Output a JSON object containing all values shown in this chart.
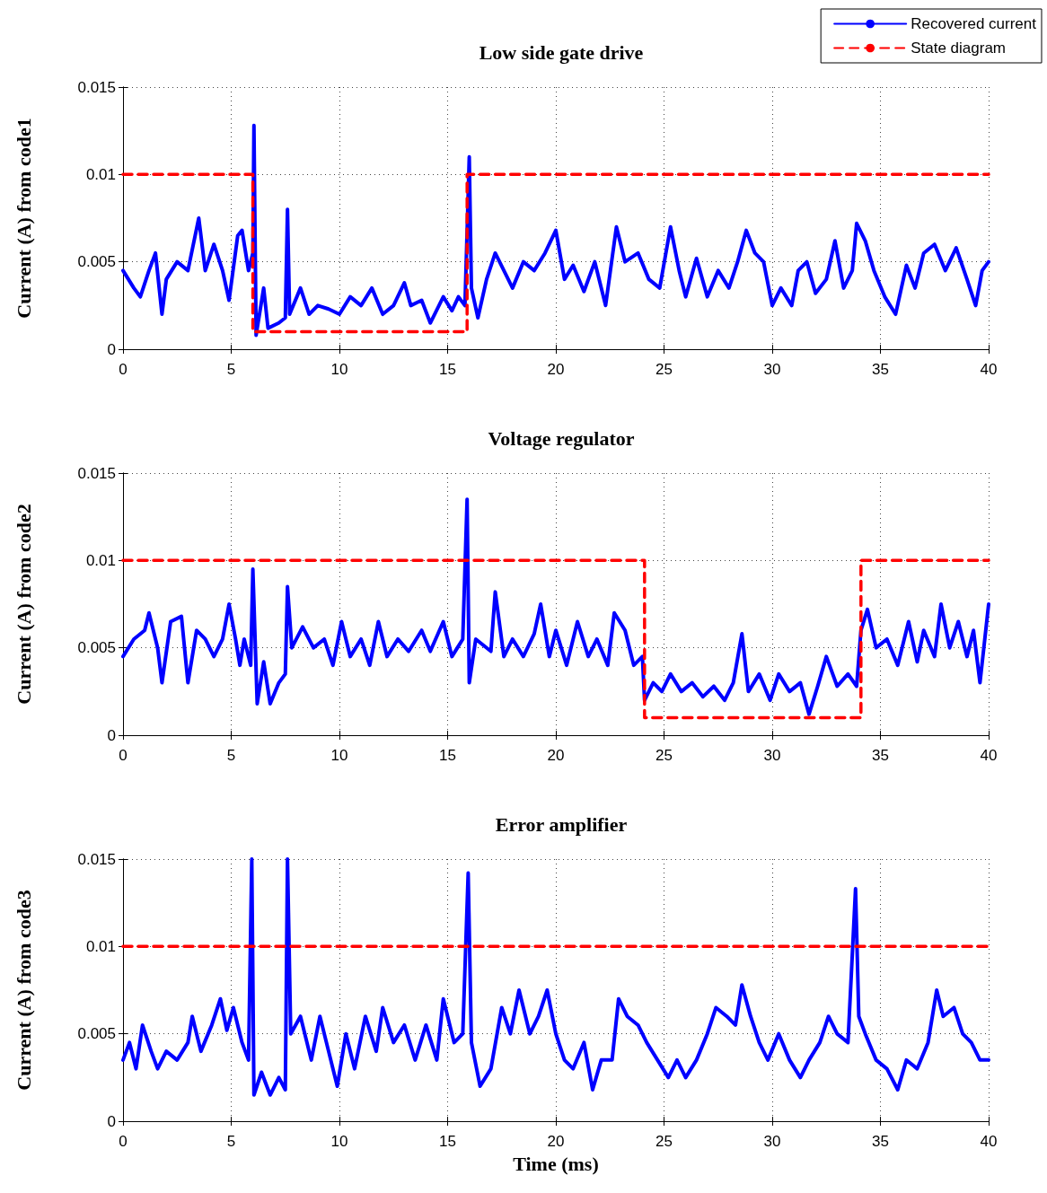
{
  "chart_data": [
    {
      "type": "line",
      "title": "Low side gate drive",
      "ylabel": "Current (A) from code1",
      "xlim": [
        0,
        40
      ],
      "xticks": [
        0,
        5,
        10,
        15,
        20,
        25,
        30,
        35,
        40
      ],
      "ylim": [
        0,
        0.015
      ],
      "yticks": [
        0,
        0.005,
        0.01,
        0.015
      ],
      "grid": true,
      "legend": "top right",
      "marker": "none",
      "series": [
        {
          "name": "Recovered current",
          "color": "#0000ff",
          "line_style": "solid",
          "x": [
            0,
            0.5,
            0.8,
            1.2,
            1.5,
            1.8,
            2,
            2.5,
            3,
            3.5,
            3.8,
            4.2,
            4.6,
            4.9,
            5.3,
            5.5,
            5.8,
            6.0,
            6.05,
            6.15,
            6.5,
            6.7,
            7.2,
            7.5,
            7.6,
            7.7,
            8.2,
            8.6,
            9,
            9.5,
            10,
            10.5,
            11,
            11.5,
            12,
            12.5,
            13,
            13.3,
            13.8,
            14.2,
            14.8,
            15.2,
            15.5,
            15.8,
            16.0,
            16.1,
            16.4,
            16.8,
            17.2,
            17.6,
            18,
            18.5,
            19,
            19.5,
            20,
            20.4,
            20.8,
            21.3,
            21.8,
            22.3,
            22.8,
            23.2,
            23.8,
            24.3,
            24.8,
            25.3,
            25.7,
            26,
            26.5,
            27,
            27.5,
            28,
            28.4,
            28.8,
            29.2,
            29.6,
            30,
            30.4,
            30.9,
            31.2,
            31.6,
            32,
            32.5,
            32.9,
            33.3,
            33.7,
            33.9,
            34.3,
            34.7,
            35.2,
            35.7,
            36.2,
            36.6,
            37,
            37.5,
            38,
            38.5,
            39,
            39.4,
            39.7,
            40
          ],
          "values": [
            0.0045,
            0.0035,
            0.003,
            0.0045,
            0.0055,
            0.002,
            0.004,
            0.005,
            0.0045,
            0.0075,
            0.0045,
            0.006,
            0.0045,
            0.0028,
            0.0065,
            0.0068,
            0.0045,
            0.0055,
            0.0128,
            0.0008,
            0.0035,
            0.0012,
            0.0015,
            0.0018,
            0.008,
            0.002,
            0.0035,
            0.002,
            0.0025,
            0.0023,
            0.002,
            0.003,
            0.0025,
            0.0035,
            0.002,
            0.0025,
            0.0038,
            0.0025,
            0.0028,
            0.0015,
            0.003,
            0.0022,
            0.003,
            0.0025,
            0.011,
            0.0035,
            0.0018,
            0.004,
            0.0055,
            0.0045,
            0.0035,
            0.005,
            0.0045,
            0.0055,
            0.0068,
            0.004,
            0.0048,
            0.0033,
            0.005,
            0.0025,
            0.007,
            0.005,
            0.0055,
            0.004,
            0.0035,
            0.007,
            0.0045,
            0.003,
            0.0052,
            0.003,
            0.0045,
            0.0035,
            0.005,
            0.0068,
            0.0055,
            0.005,
            0.0025,
            0.0035,
            0.0025,
            0.0045,
            0.005,
            0.0032,
            0.004,
            0.0062,
            0.0035,
            0.0045,
            0.0072,
            0.0062,
            0.0045,
            0.003,
            0.002,
            0.0048,
            0.0035,
            0.0055,
            0.006,
            0.0045,
            0.0058,
            0.004,
            0.0025,
            0.0045,
            0.005
          ]
        },
        {
          "name": "State diagram",
          "color": "#ff0000",
          "line_style": "dashed",
          "x": [
            0,
            6,
            6,
            15.9,
            15.9,
            40
          ],
          "values": [
            0.01,
            0.01,
            0.001,
            0.001,
            0.01,
            0.01
          ]
        }
      ]
    },
    {
      "type": "line",
      "title": "Voltage regulator",
      "ylabel": "Current (A) from code2",
      "xlim": [
        0,
        40
      ],
      "xticks": [
        0,
        5,
        10,
        15,
        20,
        25,
        30,
        35,
        40
      ],
      "ylim": [
        0,
        0.015
      ],
      "yticks": [
        0,
        0.005,
        0.01,
        0.015
      ],
      "grid": true,
      "marker": "none",
      "series": [
        {
          "color": "#0000ff",
          "line_style": "solid",
          "x": [
            0,
            0.5,
            1,
            1.2,
            1.6,
            1.8,
            2.2,
            2.7,
            3,
            3.4,
            3.8,
            4.2,
            4.6,
            4.9,
            5.2,
            5.4,
            5.6,
            5.9,
            6.0,
            6.2,
            6.5,
            6.8,
            7.2,
            7.5,
            7.6,
            7.8,
            8.3,
            8.8,
            9.3,
            9.7,
            10.1,
            10.5,
            11,
            11.4,
            11.8,
            12.2,
            12.7,
            13.2,
            13.8,
            14.2,
            14.8,
            15.2,
            15.7,
            15.9,
            16.0,
            16.3,
            17,
            17.2,
            17.6,
            18,
            18.5,
            19,
            19.3,
            19.7,
            20,
            20.5,
            21,
            21.5,
            21.9,
            22.4,
            22.7,
            23.2,
            23.6,
            24,
            24.1,
            24.5,
            24.9,
            25.3,
            25.8,
            26.3,
            26.8,
            27.3,
            27.8,
            28.2,
            28.6,
            28.9,
            29.4,
            29.9,
            30.3,
            30.8,
            31.3,
            31.7,
            32.1,
            32.5,
            33,
            33.5,
            33.9,
            34.1,
            34.4,
            34.8,
            35.3,
            35.8,
            36.3,
            36.7,
            37,
            37.5,
            37.8,
            38.2,
            38.6,
            39,
            39.3,
            39.6,
            40
          ],
          "values": [
            0.0045,
            0.0055,
            0.006,
            0.007,
            0.005,
            0.003,
            0.0065,
            0.0068,
            0.003,
            0.006,
            0.0055,
            0.0045,
            0.0055,
            0.0075,
            0.0055,
            0.004,
            0.0055,
            0.004,
            0.0095,
            0.0018,
            0.0042,
            0.0018,
            0.003,
            0.0035,
            0.0085,
            0.005,
            0.0062,
            0.005,
            0.0055,
            0.004,
            0.0065,
            0.0045,
            0.0055,
            0.004,
            0.0065,
            0.0045,
            0.0055,
            0.0048,
            0.006,
            0.0048,
            0.0065,
            0.0045,
            0.0055,
            0.0135,
            0.003,
            0.0055,
            0.0048,
            0.0082,
            0.0045,
            0.0055,
            0.0045,
            0.0058,
            0.0075,
            0.0045,
            0.006,
            0.004,
            0.0065,
            0.0045,
            0.0055,
            0.004,
            0.007,
            0.006,
            0.004,
            0.0045,
            0.002,
            0.003,
            0.0025,
            0.0035,
            0.0025,
            0.003,
            0.0022,
            0.0028,
            0.002,
            0.003,
            0.0058,
            0.0025,
            0.0035,
            0.002,
            0.0035,
            0.0025,
            0.003,
            0.0012,
            0.0028,
            0.0045,
            0.0028,
            0.0035,
            0.0028,
            0.006,
            0.0072,
            0.005,
            0.0055,
            0.004,
            0.0065,
            0.0042,
            0.006,
            0.0045,
            0.0075,
            0.005,
            0.0065,
            0.0045,
            0.006,
            0.003,
            0.0075
          ]
        },
        {
          "color": "#ff0000",
          "line_style": "dashed",
          "x": [
            0,
            24.1,
            24.1,
            34.1,
            34.1,
            40
          ],
          "values": [
            0.01,
            0.01,
            0.001,
            0.001,
            0.01,
            0.01
          ]
        }
      ]
    },
    {
      "type": "line",
      "title": "Error amplifier",
      "ylabel": "Current (A) from code3",
      "xlabel": "Time (ms)",
      "xlim": [
        0,
        40
      ],
      "xticks": [
        0,
        5,
        10,
        15,
        20,
        25,
        30,
        35,
        40
      ],
      "ylim": [
        0,
        0.015
      ],
      "yticks": [
        0,
        0.005,
        0.01,
        0.015
      ],
      "grid": true,
      "marker": "none",
      "series": [
        {
          "color": "#0000ff",
          "line_style": "solid",
          "x": [
            0,
            0.3,
            0.6,
            0.9,
            1.3,
            1.6,
            2,
            2.5,
            3,
            3.2,
            3.6,
            4.1,
            4.5,
            4.8,
            5.1,
            5.5,
            5.8,
            5.95,
            6.05,
            6.4,
            6.8,
            7.2,
            7.5,
            7.6,
            7.75,
            8.2,
            8.7,
            9.1,
            9.5,
            9.9,
            10.3,
            10.7,
            11.2,
            11.7,
            12,
            12.5,
            13,
            13.5,
            14,
            14.5,
            14.8,
            15.3,
            15.7,
            15.95,
            16.1,
            16.5,
            17,
            17.5,
            17.9,
            18.3,
            18.8,
            19.2,
            19.6,
            20,
            20.4,
            20.8,
            21.3,
            21.7,
            22.1,
            22.6,
            22.9,
            23.3,
            23.8,
            24.2,
            24.7,
            25.2,
            25.6,
            26,
            26.5,
            27,
            27.4,
            27.9,
            28.3,
            28.6,
            29,
            29.4,
            29.8,
            30.3,
            30.8,
            31.3,
            31.7,
            32.2,
            32.6,
            33,
            33.5,
            33.85,
            34,
            34.3,
            34.8,
            35.3,
            35.8,
            36.2,
            36.7,
            37.2,
            37.6,
            37.9,
            38.4,
            38.8,
            39.2,
            39.6,
            40
          ],
          "values": [
            0.0035,
            0.0045,
            0.003,
            0.0055,
            0.004,
            0.003,
            0.004,
            0.0035,
            0.0045,
            0.006,
            0.004,
            0.0055,
            0.007,
            0.0052,
            0.0065,
            0.0045,
            0.0035,
            0.015,
            0.0015,
            0.0028,
            0.0015,
            0.0025,
            0.0018,
            0.015,
            0.005,
            0.006,
            0.0035,
            0.006,
            0.004,
            0.002,
            0.005,
            0.003,
            0.006,
            0.004,
            0.0065,
            0.0045,
            0.0055,
            0.0035,
            0.0055,
            0.0035,
            0.007,
            0.0045,
            0.005,
            0.0142,
            0.0045,
            0.002,
            0.003,
            0.0065,
            0.005,
            0.0075,
            0.005,
            0.006,
            0.0075,
            0.005,
            0.0035,
            0.003,
            0.0045,
            0.0018,
            0.0035,
            0.0035,
            0.007,
            0.006,
            0.0055,
            0.0045,
            0.0035,
            0.0025,
            0.0035,
            0.0025,
            0.0035,
            0.005,
            0.0065,
            0.006,
            0.0055,
            0.0078,
            0.006,
            0.0045,
            0.0035,
            0.005,
            0.0035,
            0.0025,
            0.0035,
            0.0045,
            0.006,
            0.005,
            0.0045,
            0.0133,
            0.006,
            0.005,
            0.0035,
            0.003,
            0.0018,
            0.0035,
            0.003,
            0.0045,
            0.0075,
            0.006,
            0.0065,
            0.005,
            0.0045,
            0.0035,
            0.0035
          ]
        },
        {
          "color": "#ff0000",
          "line_style": "dashed",
          "x": [
            0,
            40
          ],
          "values": [
            0.01,
            0.01
          ]
        }
      ]
    }
  ]
}
